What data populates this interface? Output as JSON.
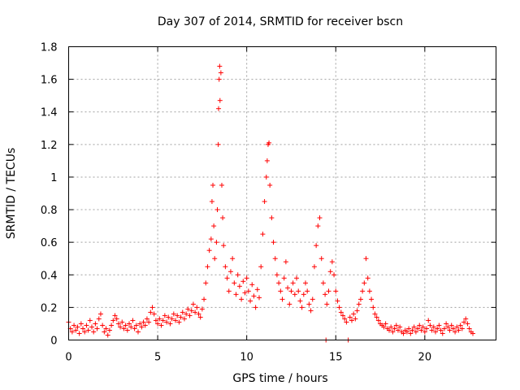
{
  "chart_data": {
    "type": "scatter",
    "title": "Day 307 of 2014, SRMTID for receiver bscn",
    "xlabel": "GPS time / hours",
    "ylabel": "SRMTID / TECUs",
    "xlim": [
      0,
      24
    ],
    "ylim": [
      0,
      1.8
    ],
    "x_ticks": [
      0,
      5,
      10,
      15,
      20
    ],
    "x_tick_labels": [
      "0",
      "5",
      "10",
      "15",
      "20"
    ],
    "y_ticks": [
      0,
      0.2,
      0.4,
      0.6,
      0.8,
      1.0,
      1.2,
      1.4,
      1.6,
      1.8
    ],
    "y_tick_labels": [
      "0",
      "0.2",
      "0.4",
      "0.6",
      "0.8",
      "1",
      "1.2",
      "1.4",
      "1.6",
      "1.8"
    ],
    "grid": true,
    "marker": "+",
    "color": "#ff0000",
    "series": [
      {
        "name": "SRMTID",
        "points": [
          [
            0.0,
            0.11
          ],
          [
            0.1,
            0.07
          ],
          [
            0.2,
            0.05
          ],
          [
            0.3,
            0.09
          ],
          [
            0.4,
            0.06
          ],
          [
            0.5,
            0.08
          ],
          [
            0.6,
            0.04
          ],
          [
            0.7,
            0.1
          ],
          [
            0.8,
            0.07
          ],
          [
            0.9,
            0.05
          ],
          [
            1.0,
            0.09
          ],
          [
            1.1,
            0.06
          ],
          [
            1.2,
            0.12
          ],
          [
            1.3,
            0.08
          ],
          [
            1.4,
            0.05
          ],
          [
            1.5,
            0.1
          ],
          [
            1.6,
            0.07
          ],
          [
            1.7,
            0.13
          ],
          [
            1.8,
            0.16
          ],
          [
            1.9,
            0.09
          ],
          [
            2.0,
            0.05
          ],
          [
            2.1,
            0.07
          ],
          [
            2.2,
            0.03
          ],
          [
            2.3,
            0.06
          ],
          [
            2.4,
            0.09
          ],
          [
            2.5,
            0.12
          ],
          [
            2.6,
            0.15
          ],
          [
            2.7,
            0.13
          ],
          [
            2.8,
            0.1
          ],
          [
            2.9,
            0.08
          ],
          [
            3.0,
            0.11
          ],
          [
            3.1,
            0.07
          ],
          [
            3.2,
            0.09
          ],
          [
            3.3,
            0.06
          ],
          [
            3.4,
            0.1
          ],
          [
            3.5,
            0.08
          ],
          [
            3.6,
            0.12
          ],
          [
            3.7,
            0.07
          ],
          [
            3.8,
            0.09
          ],
          [
            3.9,
            0.05
          ],
          [
            4.0,
            0.1
          ],
          [
            4.1,
            0.08
          ],
          [
            4.2,
            0.11
          ],
          [
            4.3,
            0.09
          ],
          [
            4.4,
            0.13
          ],
          [
            4.5,
            0.11
          ],
          [
            4.6,
            0.17
          ],
          [
            4.7,
            0.2
          ],
          [
            4.8,
            0.16
          ],
          [
            4.9,
            0.12
          ],
          [
            5.0,
            0.1
          ],
          [
            5.1,
            0.13
          ],
          [
            5.2,
            0.09
          ],
          [
            5.3,
            0.12
          ],
          [
            5.4,
            0.15
          ],
          [
            5.5,
            0.11
          ],
          [
            5.6,
            0.14
          ],
          [
            5.7,
            0.1
          ],
          [
            5.8,
            0.13
          ],
          [
            5.9,
            0.16
          ],
          [
            6.0,
            0.12
          ],
          [
            6.1,
            0.15
          ],
          [
            6.2,
            0.11
          ],
          [
            6.3,
            0.14
          ],
          [
            6.4,
            0.17
          ],
          [
            6.5,
            0.13
          ],
          [
            6.6,
            0.16
          ],
          [
            6.7,
            0.19
          ],
          [
            6.8,
            0.15
          ],
          [
            6.9,
            0.18
          ],
          [
            7.0,
            0.22
          ],
          [
            7.1,
            0.17
          ],
          [
            7.2,
            0.2
          ],
          [
            7.3,
            0.16
          ],
          [
            7.4,
            0.14
          ],
          [
            7.5,
            0.19
          ],
          [
            7.6,
            0.25
          ],
          [
            7.7,
            0.35
          ],
          [
            7.8,
            0.45
          ],
          [
            7.9,
            0.55
          ],
          [
            8.0,
            0.62
          ],
          [
            8.05,
            0.85
          ],
          [
            8.1,
            0.95
          ],
          [
            8.15,
            0.7
          ],
          [
            8.2,
            0.5
          ],
          [
            8.3,
            0.6
          ],
          [
            8.35,
            0.8
          ],
          [
            8.4,
            1.2
          ],
          [
            8.42,
            1.42
          ],
          [
            8.45,
            1.6
          ],
          [
            8.48,
            1.68
          ],
          [
            8.5,
            1.47
          ],
          [
            8.55,
            1.64
          ],
          [
            8.6,
            0.95
          ],
          [
            8.65,
            0.75
          ],
          [
            8.7,
            0.58
          ],
          [
            8.8,
            0.45
          ],
          [
            8.9,
            0.38
          ],
          [
            9.0,
            0.3
          ],
          [
            9.1,
            0.42
          ],
          [
            9.2,
            0.5
          ],
          [
            9.3,
            0.35
          ],
          [
            9.4,
            0.28
          ],
          [
            9.5,
            0.4
          ],
          [
            9.6,
            0.33
          ],
          [
            9.7,
            0.25
          ],
          [
            9.8,
            0.36
          ],
          [
            9.9,
            0.29
          ],
          [
            10.0,
            0.38
          ],
          [
            10.1,
            0.3
          ],
          [
            10.2,
            0.24
          ],
          [
            10.3,
            0.34
          ],
          [
            10.4,
            0.27
          ],
          [
            10.5,
            0.2
          ],
          [
            10.6,
            0.31
          ],
          [
            10.7,
            0.26
          ],
          [
            10.8,
            0.45
          ],
          [
            10.9,
            0.65
          ],
          [
            11.0,
            0.85
          ],
          [
            11.1,
            1.0
          ],
          [
            11.15,
            1.1
          ],
          [
            11.2,
            1.2
          ],
          [
            11.25,
            1.21
          ],
          [
            11.3,
            0.95
          ],
          [
            11.4,
            0.75
          ],
          [
            11.5,
            0.6
          ],
          [
            11.6,
            0.5
          ],
          [
            11.7,
            0.4
          ],
          [
            11.8,
            0.35
          ],
          [
            11.9,
            0.3
          ],
          [
            12.0,
            0.25
          ],
          [
            12.1,
            0.38
          ],
          [
            12.2,
            0.48
          ],
          [
            12.3,
            0.32
          ],
          [
            12.4,
            0.22
          ],
          [
            12.5,
            0.3
          ],
          [
            12.6,
            0.35
          ],
          [
            12.7,
            0.28
          ],
          [
            12.8,
            0.38
          ],
          [
            12.9,
            0.3
          ],
          [
            13.0,
            0.24
          ],
          [
            13.1,
            0.2
          ],
          [
            13.2,
            0.28
          ],
          [
            13.3,
            0.35
          ],
          [
            13.4,
            0.3
          ],
          [
            13.5,
            0.22
          ],
          [
            13.6,
            0.18
          ],
          [
            13.7,
            0.25
          ],
          [
            13.8,
            0.45
          ],
          [
            13.9,
            0.58
          ],
          [
            14.0,
            0.7
          ],
          [
            14.1,
            0.75
          ],
          [
            14.2,
            0.5
          ],
          [
            14.3,
            0.35
          ],
          [
            14.4,
            0.28
          ],
          [
            14.45,
            0.0
          ],
          [
            14.5,
            0.22
          ],
          [
            14.6,
            0.3
          ],
          [
            14.7,
            0.42
          ],
          [
            14.8,
            0.48
          ],
          [
            14.9,
            0.4
          ],
          [
            15.0,
            0.3
          ],
          [
            15.1,
            0.24
          ],
          [
            15.2,
            0.2
          ],
          [
            15.3,
            0.17
          ],
          [
            15.4,
            0.15
          ],
          [
            15.5,
            0.13
          ],
          [
            15.6,
            0.11
          ],
          [
            15.7,
            0.0
          ],
          [
            15.8,
            0.14
          ],
          [
            15.9,
            0.12
          ],
          [
            16.0,
            0.16
          ],
          [
            16.1,
            0.13
          ],
          [
            16.2,
            0.18
          ],
          [
            16.3,
            0.22
          ],
          [
            16.4,
            0.25
          ],
          [
            16.5,
            0.3
          ],
          [
            16.6,
            0.35
          ],
          [
            16.7,
            0.5
          ],
          [
            16.8,
            0.38
          ],
          [
            16.9,
            0.3
          ],
          [
            17.0,
            0.25
          ],
          [
            17.1,
            0.2
          ],
          [
            17.2,
            0.16
          ],
          [
            17.3,
            0.14
          ],
          [
            17.4,
            0.12
          ],
          [
            17.5,
            0.1
          ],
          [
            17.6,
            0.09
          ],
          [
            17.7,
            0.08
          ],
          [
            17.8,
            0.1
          ],
          [
            17.9,
            0.07
          ],
          [
            18.0,
            0.06
          ],
          [
            18.1,
            0.08
          ],
          [
            18.2,
            0.05
          ],
          [
            18.3,
            0.07
          ],
          [
            18.4,
            0.09
          ],
          [
            18.5,
            0.06
          ],
          [
            18.6,
            0.08
          ],
          [
            18.7,
            0.05
          ],
          [
            18.8,
            0.04
          ],
          [
            18.9,
            0.06
          ],
          [
            19.0,
            0.05
          ],
          [
            19.1,
            0.07
          ],
          [
            19.2,
            0.04
          ],
          [
            19.3,
            0.06
          ],
          [
            19.4,
            0.08
          ],
          [
            19.5,
            0.05
          ],
          [
            19.6,
            0.07
          ],
          [
            19.7,
            0.09
          ],
          [
            19.8,
            0.06
          ],
          [
            19.9,
            0.08
          ],
          [
            20.0,
            0.05
          ],
          [
            20.1,
            0.07
          ],
          [
            20.2,
            0.12
          ],
          [
            20.3,
            0.09
          ],
          [
            20.4,
            0.06
          ],
          [
            20.5,
            0.08
          ],
          [
            20.6,
            0.05
          ],
          [
            20.7,
            0.07
          ],
          [
            20.8,
            0.09
          ],
          [
            20.9,
            0.06
          ],
          [
            21.0,
            0.04
          ],
          [
            21.1,
            0.07
          ],
          [
            21.2,
            0.1
          ],
          [
            21.3,
            0.08
          ],
          [
            21.4,
            0.06
          ],
          [
            21.5,
            0.09
          ],
          [
            21.6,
            0.07
          ],
          [
            21.7,
            0.05
          ],
          [
            21.8,
            0.08
          ],
          [
            21.9,
            0.06
          ],
          [
            22.0,
            0.09
          ],
          [
            22.1,
            0.07
          ],
          [
            22.2,
            0.11
          ],
          [
            22.3,
            0.13
          ],
          [
            22.4,
            0.1
          ],
          [
            22.5,
            0.07
          ],
          [
            22.6,
            0.05
          ],
          [
            22.7,
            0.04
          ]
        ]
      }
    ]
  }
}
